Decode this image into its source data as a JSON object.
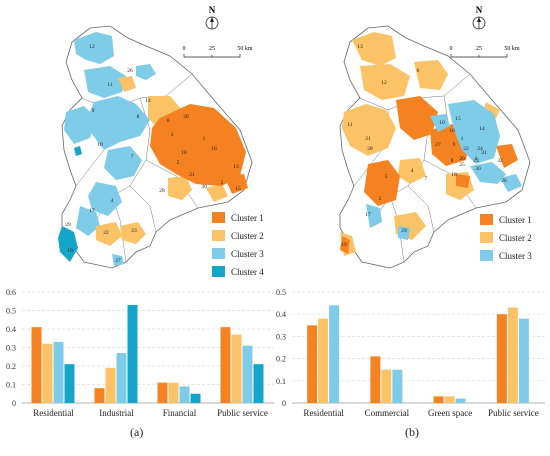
{
  "colors": {
    "cluster1": "#f58220",
    "cluster2": "#fbc365",
    "cluster3": "#7fcce9",
    "cluster4": "#14a5c8",
    "boundary": "#666666",
    "gridline": "#dddddd"
  },
  "maps": [
    {
      "id": "a",
      "north_label": "N",
      "scale_labels": [
        "0",
        "25",
        "50 km"
      ],
      "legend": [
        "Cluster 1",
        "Cluster 2",
        "Cluster 3",
        "Cluster 4"
      ],
      "region_labels": [
        {
          "n": "12",
          "cluster": 3
        },
        {
          "n": "26",
          "cluster": 3
        },
        {
          "n": "11",
          "cluster": 3
        },
        {
          "n": "9",
          "cluster": 2
        },
        {
          "n": "14",
          "cluster": 3
        },
        {
          "n": "8",
          "cluster": 3
        },
        {
          "n": "20",
          "cluster": 1
        },
        {
          "n": "10",
          "cluster": 3
        },
        {
          "n": "6",
          "cluster": 2
        },
        {
          "n": "3",
          "cluster": 1
        },
        {
          "n": "1",
          "cluster": 1
        },
        {
          "n": "16",
          "cluster": 1
        },
        {
          "n": "21",
          "cluster": 1
        },
        {
          "n": "7",
          "cluster": 3
        },
        {
          "n": "5",
          "cluster": 1
        },
        {
          "n": "18",
          "cluster": 1
        },
        {
          "n": "2",
          "cluster": 1
        },
        {
          "n": "28",
          "cluster": 2
        },
        {
          "n": "13",
          "cluster": 1
        },
        {
          "n": "30",
          "cluster": 2
        },
        {
          "n": "15",
          "cluster": 2
        },
        {
          "n": "17",
          "cluster": 3
        },
        {
          "n": "22",
          "cluster": 2
        },
        {
          "n": "23",
          "cluster": 2
        },
        {
          "n": "29",
          "cluster": 4
        },
        {
          "n": "27",
          "cluster": 3
        },
        {
          "n": "4",
          "cluster": 3
        },
        {
          "n": "19",
          "cluster": 4
        }
      ]
    },
    {
      "id": "b",
      "north_label": "N",
      "scale_labels": [
        "0",
        "25",
        "50 km"
      ],
      "legend": [
        "Cluster 1",
        "Cluster 2",
        "Cluster 3"
      ],
      "region_labels": [
        {
          "n": "13",
          "cluster": 2
        },
        {
          "n": "12",
          "cluster": 2
        },
        {
          "n": "6",
          "cluster": 2
        },
        {
          "n": "11",
          "cluster": 2
        },
        {
          "n": "15",
          "cluster": 3
        },
        {
          "n": "14",
          "cluster": 3
        },
        {
          "n": "16",
          "cluster": 3
        },
        {
          "n": "10",
          "cluster": 3
        },
        {
          "n": "21",
          "cluster": 2
        },
        {
          "n": "27",
          "cluster": 1
        },
        {
          "n": "1",
          "cluster": 1
        },
        {
          "n": "31",
          "cluster": 3
        },
        {
          "n": "9",
          "cluster": 1
        },
        {
          "n": "22",
          "cluster": 3
        },
        {
          "n": "24",
          "cluster": 3
        },
        {
          "n": "3",
          "cluster": 3
        },
        {
          "n": "20",
          "cluster": 1
        },
        {
          "n": "23",
          "cluster": 1
        },
        {
          "n": "8",
          "cluster": 3
        },
        {
          "n": "25",
          "cluster": 3
        },
        {
          "n": "30",
          "cluster": 3
        },
        {
          "n": "32",
          "cluster": 1
        },
        {
          "n": "18",
          "cluster": 2
        },
        {
          "n": "26",
          "cluster": 3
        },
        {
          "n": "2",
          "cluster": 1
        },
        {
          "n": "4",
          "cluster": 2
        },
        {
          "n": "17",
          "cluster": 3
        },
        {
          "n": "29",
          "cluster": 3
        },
        {
          "n": "19",
          "cluster": 1
        },
        {
          "n": "28",
          "cluster": 1
        },
        {
          "n": "5",
          "cluster": 1
        },
        {
          "n": "7",
          "cluster": 2
        }
      ]
    }
  ],
  "chart_data": [
    {
      "type": "bar",
      "categories": [
        "Residential",
        "Industrial",
        "Financial",
        "Public service"
      ],
      "series": [
        {
          "name": "Cluster 1",
          "values": [
            0.41,
            0.08,
            0.11,
            0.41
          ]
        },
        {
          "name": "Cluster 2",
          "values": [
            0.32,
            0.19,
            0.11,
            0.37
          ]
        },
        {
          "name": "Cluster 3",
          "values": [
            0.33,
            0.27,
            0.09,
            0.31
          ]
        },
        {
          "name": "Cluster 4",
          "values": [
            0.21,
            0.53,
            0.05,
            0.21
          ]
        }
      ],
      "ylim": [
        0,
        0.6
      ],
      "yticks": [
        "0",
        "0.1",
        "0.2",
        "0.3",
        "0.4",
        "0.5",
        "0.6"
      ],
      "grid": true,
      "title": "",
      "xlabel": "",
      "ylabel": ""
    },
    {
      "type": "bar",
      "categories": [
        "Residential",
        "Commercial",
        "Green space",
        "Public service"
      ],
      "series": [
        {
          "name": "Cluster 1",
          "values": [
            0.35,
            0.21,
            0.03,
            0.4
          ]
        },
        {
          "name": "Cluster 2",
          "values": [
            0.38,
            0.15,
            0.03,
            0.43
          ]
        },
        {
          "name": "Cluster 3",
          "values": [
            0.44,
            0.15,
            0.02,
            0.38
          ]
        }
      ],
      "ylim": [
        0,
        0.5
      ],
      "yticks": [
        "0",
        "0.1",
        "0.2",
        "0.3",
        "0.4",
        "0.5"
      ],
      "grid": true,
      "title": "",
      "xlabel": "",
      "ylabel": ""
    }
  ],
  "captions": [
    "(a)",
    "(b)"
  ]
}
